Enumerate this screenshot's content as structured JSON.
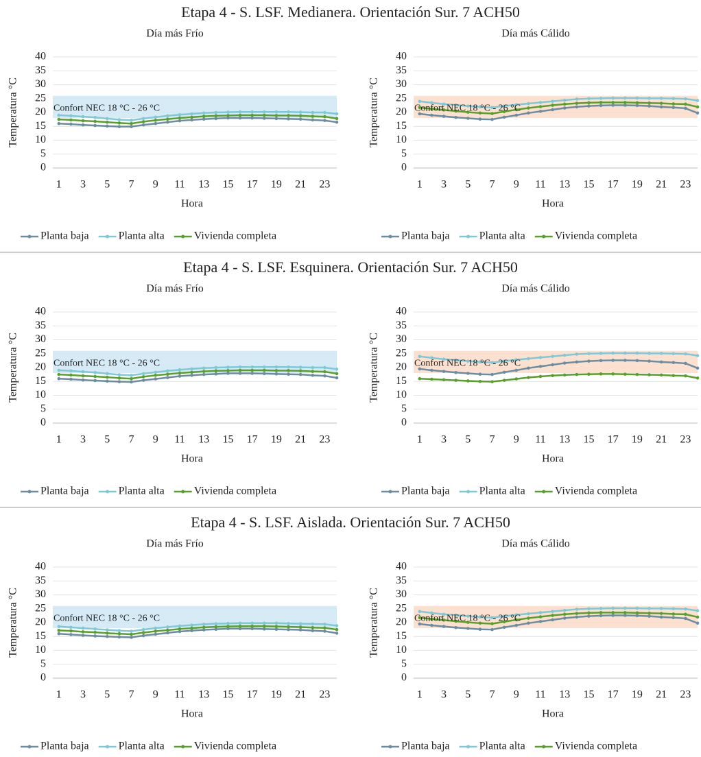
{
  "figure_titles": [
    "Etapa 4 - S. LSF. Medianera. Orientación Sur. 7 ACH50",
    "Etapa 4 - S. LSF. Esquinera. Orientación Sur. 7 ACH50",
    "Etapa 4 - S. LSF. Aislada. Orientación Sur. 7 ACH50"
  ],
  "chart_data": [
    {
      "type": "line",
      "title": "Día más Frío",
      "xlabel": "Hora",
      "ylabel": "Temperatura °C",
      "x": [
        1,
        2,
        3,
        4,
        5,
        6,
        7,
        8,
        9,
        10,
        11,
        12,
        13,
        14,
        15,
        16,
        17,
        18,
        19,
        20,
        21,
        22,
        23,
        24
      ],
      "xlim": [
        0.5,
        24
      ],
      "xticks": [
        1,
        3,
        5,
        7,
        9,
        11,
        13,
        15,
        17,
        19,
        21,
        23
      ],
      "ylim": [
        0,
        40
      ],
      "yticks": [
        0,
        5,
        10,
        15,
        20,
        25,
        30,
        35,
        40
      ],
      "grid": true,
      "band": [
        18,
        26
      ],
      "band_color": "#cfe7f3",
      "band_label": "Confort NEC 18 °C - 26 °C",
      "series": [
        {
          "name": "Planta baja",
          "color": "#6c8ca2",
          "values": [
            16,
            15.8,
            15.5,
            15.3,
            15.1,
            14.9,
            14.9,
            15.5,
            16,
            16.5,
            17,
            17.3,
            17.6,
            17.8,
            18,
            18,
            18,
            17.9,
            17.8,
            17.7,
            17.6,
            17.3,
            17.1,
            16.5
          ]
        },
        {
          "name": "Planta alta",
          "color": "#7ec8d8",
          "values": [
            19,
            18.8,
            18.5,
            18.2,
            17.8,
            17.4,
            17.2,
            17.8,
            18.3,
            18.8,
            19.2,
            19.5,
            19.8,
            20,
            20.1,
            20.2,
            20.2,
            20.2,
            20.2,
            20.2,
            20.1,
            20,
            20,
            19.5
          ]
        },
        {
          "name": "Vivienda completa",
          "color": "#5a9e2c",
          "values": [
            17.5,
            17.3,
            17,
            16.8,
            16.5,
            16.2,
            16,
            16.7,
            17.2,
            17.6,
            18,
            18.3,
            18.6,
            18.8,
            18.9,
            19,
            19,
            19,
            18.9,
            18.9,
            18.8,
            18.6,
            18.5,
            17.8
          ]
        }
      ]
    },
    {
      "type": "line",
      "title": "Día más Cálido",
      "xlabel": "Hora",
      "ylabel": "Temperatura °C",
      "x": [
        1,
        2,
        3,
        4,
        5,
        6,
        7,
        8,
        9,
        10,
        11,
        12,
        13,
        14,
        15,
        16,
        17,
        18,
        19,
        20,
        21,
        22,
        23,
        24
      ],
      "xlim": [
        0.5,
        24
      ],
      "xticks": [
        1,
        3,
        5,
        7,
        9,
        11,
        13,
        15,
        17,
        19,
        21,
        23
      ],
      "ylim": [
        0,
        40
      ],
      "yticks": [
        0,
        5,
        10,
        15,
        20,
        25,
        30,
        35,
        40
      ],
      "grid": true,
      "band": [
        18,
        26
      ],
      "band_color": "#fbdac8",
      "band_label": "Confort NEC 18 °C - 26 °C",
      "series": [
        {
          "name": "Planta baja",
          "color": "#6c8ca2",
          "values": [
            19.5,
            19,
            18.6,
            18.2,
            17.9,
            17.6,
            17.5,
            18.3,
            19,
            19.8,
            20.4,
            21,
            21.6,
            22,
            22.3,
            22.5,
            22.6,
            22.6,
            22.5,
            22.3,
            22,
            21.8,
            21.5,
            19.8
          ]
        },
        {
          "name": "Planta alta",
          "color": "#7ec8d8",
          "values": [
            24,
            23.5,
            23,
            22.7,
            22.3,
            22,
            21.8,
            22.3,
            22.8,
            23.2,
            23.6,
            24,
            24.4,
            24.8,
            25,
            25.1,
            25.2,
            25.2,
            25.2,
            25.1,
            25.1,
            25,
            24.9,
            24.3
          ]
        },
        {
          "name": "Vivienda completa",
          "color": "#5a9e2c",
          "values": [
            21.8,
            21.3,
            20.9,
            20.5,
            20.1,
            19.8,
            19.6,
            20.3,
            21,
            21.6,
            22.1,
            22.6,
            23,
            23.3,
            23.5,
            23.6,
            23.6,
            23.6,
            23.5,
            23.4,
            23.3,
            23.1,
            23,
            22
          ]
        }
      ]
    },
    {
      "type": "line",
      "title": "Día más Frío",
      "xlabel": "Hora",
      "ylabel": "Temperatura °C",
      "x": [
        1,
        2,
        3,
        4,
        5,
        6,
        7,
        8,
        9,
        10,
        11,
        12,
        13,
        14,
        15,
        16,
        17,
        18,
        19,
        20,
        21,
        22,
        23,
        24
      ],
      "xlim": [
        0.5,
        24
      ],
      "xticks": [
        1,
        3,
        5,
        7,
        9,
        11,
        13,
        15,
        17,
        19,
        21,
        23
      ],
      "ylim": [
        0,
        40
      ],
      "yticks": [
        0,
        5,
        10,
        15,
        20,
        25,
        30,
        35,
        40
      ],
      "grid": true,
      "band": [
        18,
        26
      ],
      "band_color": "#cfe7f3",
      "band_label": "Confort NEC 18 °C - 26 °C",
      "series": [
        {
          "name": "Planta baja",
          "color": "#6c8ca2",
          "values": [
            16,
            15.8,
            15.5,
            15.3,
            15.1,
            14.9,
            14.8,
            15.4,
            15.9,
            16.4,
            16.9,
            17.2,
            17.5,
            17.7,
            17.9,
            17.9,
            17.9,
            17.8,
            17.7,
            17.6,
            17.5,
            17.2,
            17,
            16.3
          ]
        },
        {
          "name": "Planta alta",
          "color": "#7ec8d8",
          "values": [
            19,
            18.8,
            18.5,
            18.2,
            17.8,
            17.4,
            17.2,
            17.8,
            18.3,
            18.8,
            19.2,
            19.5,
            19.8,
            20,
            20.1,
            20.2,
            20.2,
            20.2,
            20.2,
            20.2,
            20.1,
            20,
            20,
            19.4
          ]
        },
        {
          "name": "Vivienda completa",
          "color": "#5a9e2c",
          "values": [
            17.5,
            17.3,
            17,
            16.8,
            16.5,
            16.2,
            16,
            16.7,
            17.2,
            17.6,
            18,
            18.3,
            18.6,
            18.8,
            18.9,
            19,
            19,
            19,
            18.9,
            18.9,
            18.8,
            18.6,
            18.5,
            17.8
          ]
        }
      ]
    },
    {
      "type": "line",
      "title": "Día más Cálido",
      "xlabel": "Hora",
      "ylabel": "Temperatura °C",
      "x": [
        1,
        2,
        3,
        4,
        5,
        6,
        7,
        8,
        9,
        10,
        11,
        12,
        13,
        14,
        15,
        16,
        17,
        18,
        19,
        20,
        21,
        22,
        23,
        24
      ],
      "xlim": [
        0.5,
        24
      ],
      "xticks": [
        1,
        3,
        5,
        7,
        9,
        11,
        13,
        15,
        17,
        19,
        21,
        23
      ],
      "ylim": [
        0,
        40
      ],
      "yticks": [
        0,
        5,
        10,
        15,
        20,
        25,
        30,
        35,
        40
      ],
      "grid": true,
      "band": [
        18,
        26
      ],
      "band_color": "#fbdac8",
      "band_label": "Confort NEC 18 °C - 26 °C",
      "series": [
        {
          "name": "Planta baja",
          "color": "#6c8ca2",
          "values": [
            19.5,
            19,
            18.6,
            18.2,
            17.9,
            17.6,
            17.5,
            18.3,
            19,
            19.8,
            20.4,
            21,
            21.6,
            22,
            22.3,
            22.5,
            22.6,
            22.6,
            22.5,
            22.3,
            22,
            21.8,
            21.5,
            19.8
          ]
        },
        {
          "name": "Planta alta",
          "color": "#7ec8d8",
          "values": [
            24,
            23.5,
            23,
            22.7,
            22.3,
            22,
            21.8,
            22.3,
            22.8,
            23.2,
            23.6,
            24,
            24.4,
            24.8,
            25,
            25.1,
            25.2,
            25.2,
            25.2,
            25.1,
            25.1,
            25,
            24.9,
            24.3
          ]
        },
        {
          "name": "Vivienda completa",
          "color": "#5a9e2c",
          "values": [
            16,
            15.8,
            15.6,
            15.4,
            15.2,
            15,
            14.9,
            15.4,
            15.9,
            16.4,
            16.8,
            17.1,
            17.3,
            17.5,
            17.6,
            17.7,
            17.7,
            17.6,
            17.5,
            17.4,
            17.3,
            17.1,
            17,
            16.2
          ]
        }
      ]
    },
    {
      "type": "line",
      "title": "Día más Frío",
      "xlabel": "Hora",
      "ylabel": "Temperatura °C",
      "x": [
        1,
        2,
        3,
        4,
        5,
        6,
        7,
        8,
        9,
        10,
        11,
        12,
        13,
        14,
        15,
        16,
        17,
        18,
        19,
        20,
        21,
        22,
        23,
        24
      ],
      "xlim": [
        0.5,
        24
      ],
      "xticks": [
        1,
        3,
        5,
        7,
        9,
        11,
        13,
        15,
        17,
        19,
        21,
        23
      ],
      "ylim": [
        0,
        40
      ],
      "yticks": [
        0,
        5,
        10,
        15,
        20,
        25,
        30,
        35,
        40
      ],
      "grid": true,
      "band": [
        18,
        26
      ],
      "band_color": "#cfe7f3",
      "band_label": "Confort NEC 18 °C - 26 °C",
      "series": [
        {
          "name": "Planta baja",
          "color": "#6c8ca2",
          "values": [
            16,
            15.7,
            15.4,
            15.2,
            15,
            14.8,
            14.7,
            15.3,
            15.8,
            16.3,
            16.8,
            17.1,
            17.4,
            17.6,
            17.8,
            17.8,
            17.8,
            17.7,
            17.6,
            17.5,
            17.4,
            17.1,
            16.9,
            16.2
          ]
        },
        {
          "name": "Planta alta",
          "color": "#7ec8d8",
          "values": [
            18.6,
            18.3,
            18,
            17.7,
            17.4,
            17.1,
            16.9,
            17.5,
            18,
            18.4,
            18.8,
            19.1,
            19.4,
            19.6,
            19.7,
            19.8,
            19.8,
            19.8,
            19.8,
            19.7,
            19.6,
            19.5,
            19.4,
            18.9
          ]
        },
        {
          "name": "Vivienda completa",
          "color": "#5a9e2c",
          "values": [
            17.2,
            17,
            16.7,
            16.5,
            16.2,
            16,
            15.8,
            16.4,
            16.9,
            17.3,
            17.7,
            18,
            18.3,
            18.5,
            18.6,
            18.7,
            18.7,
            18.7,
            18.6,
            18.5,
            18.4,
            18.2,
            18.1,
            17.5
          ]
        }
      ]
    },
    {
      "type": "line",
      "title": "Día más Cálido",
      "xlabel": "Hora",
      "ylabel": "Temperatura °C",
      "x": [
        1,
        2,
        3,
        4,
        5,
        6,
        7,
        8,
        9,
        10,
        11,
        12,
        13,
        14,
        15,
        16,
        17,
        18,
        19,
        20,
        21,
        22,
        23,
        24
      ],
      "xlim": [
        0.5,
        24
      ],
      "xticks": [
        1,
        3,
        5,
        7,
        9,
        11,
        13,
        15,
        17,
        19,
        21,
        23
      ],
      "ylim": [
        0,
        40
      ],
      "yticks": [
        0,
        5,
        10,
        15,
        20,
        25,
        30,
        35,
        40
      ],
      "grid": true,
      "band": [
        18,
        26
      ],
      "band_color": "#fbdac8",
      "band_label": "Confort NEC 18 °C - 26 °C",
      "series": [
        {
          "name": "Planta baja",
          "color": "#6c8ca2",
          "values": [
            19.5,
            19,
            18.6,
            18.2,
            17.9,
            17.6,
            17.5,
            18.3,
            19,
            19.8,
            20.4,
            21,
            21.6,
            22,
            22.3,
            22.5,
            22.6,
            22.6,
            22.5,
            22.3,
            22,
            21.8,
            21.5,
            19.8
          ]
        },
        {
          "name": "Planta alta",
          "color": "#7ec8d8",
          "values": [
            24,
            23.5,
            23,
            22.7,
            22.3,
            22,
            21.8,
            22.3,
            22.8,
            23.2,
            23.6,
            24,
            24.4,
            24.8,
            25,
            25.1,
            25.2,
            25.2,
            25.2,
            25.1,
            25.1,
            25,
            24.9,
            24.3
          ]
        },
        {
          "name": "Vivienda completa",
          "color": "#5a9e2c",
          "values": [
            21.8,
            21.3,
            20.9,
            20.5,
            20.1,
            19.8,
            19.6,
            20.3,
            21,
            21.6,
            22.1,
            22.6,
            23,
            23.3,
            23.5,
            23.6,
            23.6,
            23.6,
            23.5,
            23.4,
            23.3,
            23.1,
            23,
            22
          ]
        }
      ]
    }
  ],
  "legend_labels_override": {
    "4": [
      "Planta baja",
      "Planta alta",
      "Vivienda completa."
    ]
  }
}
